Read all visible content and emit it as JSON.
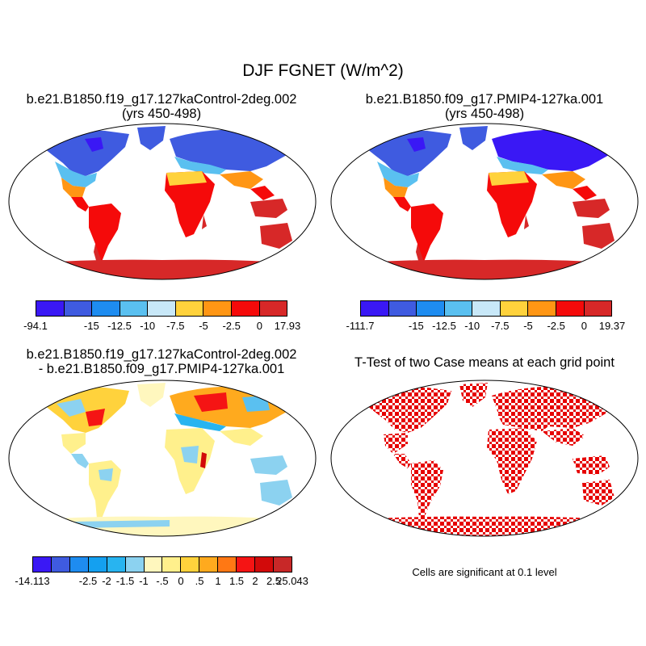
{
  "figure": {
    "title": "DJF FGNET (W/m^2)"
  },
  "panels": [
    {
      "id": "control",
      "title_line1": "b.e21.B1850.f19_g17.127kaControl-2deg.002",
      "title_line2": "(yrs 450-498)",
      "colorbar": {
        "colors": [
          "#3a18f5",
          "#3f5be0",
          "#1e8cf0",
          "#5ac0f0",
          "#c8e8f8",
          "#ffd23c",
          "#ff9614",
          "#f50a0a",
          "#d72828"
        ],
        "labels": [
          "-94.1",
          "-15",
          "-12.5",
          "-10",
          "-7.5",
          "-5",
          "-2.5",
          "0",
          "17.93"
        ]
      }
    },
    {
      "id": "pmip4",
      "title_line1": "b.e21.B1850.f09_g17.PMIP4-127ka.001",
      "title_line2": "(yrs 450-498)",
      "colorbar": {
        "colors": [
          "#3a18f5",
          "#3f5be0",
          "#1e8cf0",
          "#5ac0f0",
          "#c8e8f8",
          "#ffd23c",
          "#ff9614",
          "#f50a0a",
          "#d72828"
        ],
        "labels": [
          "-111.7",
          "-15",
          "-12.5",
          "-10",
          "-7.5",
          "-5",
          "-2.5",
          "0",
          "19.37"
        ]
      }
    },
    {
      "id": "difference",
      "title_line1": "b.e21.B1850.f19_g17.127kaControl-2deg.002",
      "title_line2": "- b.e21.B1850.f09_g17.PMIP4-127ka.001",
      "colorbar": {
        "colors": [
          "#3a18f5",
          "#3f5be0",
          "#1e8cf0",
          "#14a0f0",
          "#28b4f0",
          "#8cd2f0",
          "#fff7be",
          "#fff08c",
          "#ffd23c",
          "#ffaa1e",
          "#ff7814",
          "#f51414",
          "#d20a0a",
          "#c82828"
        ],
        "labels": [
          "-14.113",
          "-2.5",
          "-2",
          "-1.5",
          "-1",
          "-.5",
          "0",
          ".5",
          "1",
          "1.5",
          "2",
          "2.5",
          "25.043"
        ]
      }
    },
    {
      "id": "ttest",
      "title_line1": "T-Test of two Case means at each grid point",
      "footnote": "Cells are significant at 0.1 level",
      "mark_color": "#e60000"
    }
  ]
}
